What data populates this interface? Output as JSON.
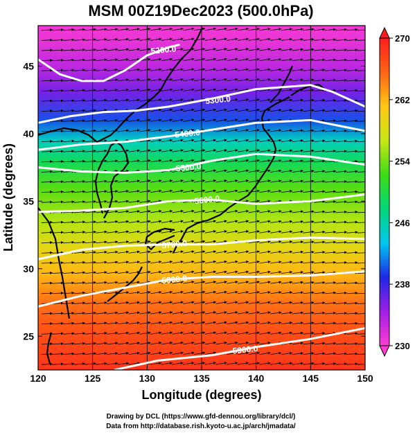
{
  "title": "MSM 00Z19Dec2023 (500.0hPa)",
  "xlabel": "Longitude (degrees)",
  "ylabel": "Latitude  (degrees)",
  "credits": [
    "Drawing by DCL (https://www.gfd-dennou.org/library/dcl/)",
    "Data from http://database.rish.kyoto-u.ac.jp/arch/jmadata/"
  ],
  "chart_data": {
    "type": "heatmap",
    "x_range": [
      120,
      150
    ],
    "y_range": [
      22.5,
      48
    ],
    "x_ticks": [
      120,
      125,
      130,
      135,
      140,
      145,
      150
    ],
    "x_tick_labels": [
      "120",
      "125",
      "130",
      "135",
      "140",
      "145",
      "150"
    ],
    "y_ticks": [
      25,
      30,
      35,
      40,
      45
    ],
    "y_tick_labels": [
      "25",
      "30",
      "35",
      "40",
      "45"
    ],
    "colorbar": {
      "min": 230,
      "max": 270,
      "ticks": [
        230,
        238,
        246,
        254,
        262,
        270
      ],
      "tick_labels": [
        "230",
        "238",
        "246",
        "254",
        "262",
        "270"
      ],
      "colors_low_to_high": [
        "#ff3cd2",
        "#a01ee6",
        "#1e28e6",
        "#00c8f0",
        "#00d878",
        "#3cdc14",
        "#c8e614",
        "#ffc814",
        "#ff6414",
        "#ff1e1e"
      ]
    },
    "contours": [
      {
        "label": "5200.0",
        "points": [
          [
            120,
            45.5
          ],
          [
            122,
            44.4
          ],
          [
            124,
            43.9
          ],
          [
            126,
            43.9
          ],
          [
            128,
            44.7
          ],
          [
            130,
            45.8
          ],
          [
            132,
            46.4
          ],
          [
            133,
            46.6
          ]
        ]
      },
      {
        "label": "5300.0",
        "points": [
          [
            120,
            40.8
          ],
          [
            123,
            41.3
          ],
          [
            126,
            41.6
          ],
          [
            129,
            41.7
          ],
          [
            132,
            42
          ],
          [
            134,
            42.3
          ],
          [
            136,
            42.6
          ],
          [
            140,
            43.3
          ],
          [
            145,
            43.6
          ],
          [
            147,
            43.1
          ],
          [
            150,
            42
          ]
        ]
      },
      {
        "label": "5400.0",
        "points": [
          [
            120,
            38.8
          ],
          [
            124,
            39.2
          ],
          [
            128,
            39.4
          ],
          [
            132,
            39.8
          ],
          [
            136,
            40.3
          ],
          [
            140,
            40.8
          ],
          [
            145,
            41
          ],
          [
            150,
            40.2
          ]
        ]
      },
      {
        "label": "5500.0",
        "points": [
          [
            120,
            37.5
          ],
          [
            124,
            37.2
          ],
          [
            128,
            37.1
          ],
          [
            132,
            37.3
          ],
          [
            136,
            38
          ],
          [
            140,
            38.5
          ],
          [
            145,
            38.3
          ],
          [
            150,
            37.7
          ]
        ]
      },
      {
        "label": "5600.0",
        "points": [
          [
            120,
            34.2
          ],
          [
            124,
            34.3
          ],
          [
            128,
            34.5
          ],
          [
            132,
            35
          ],
          [
            136,
            35.1
          ],
          [
            140,
            34.8
          ],
          [
            145,
            35
          ],
          [
            150,
            35.5
          ]
        ]
      },
      {
        "label": "5700.0",
        "points": [
          [
            120,
            30.7
          ],
          [
            124,
            31.4
          ],
          [
            128,
            31.7
          ],
          [
            132,
            31.8
          ],
          [
            136,
            31.8
          ],
          [
            140,
            32.1
          ],
          [
            145,
            32.3
          ],
          [
            150,
            32.2
          ]
        ]
      },
      {
        "label": "5800.0",
        "points": [
          [
            120,
            27.2
          ],
          [
            124,
            28
          ],
          [
            128,
            28.6
          ],
          [
            132,
            29.2
          ],
          [
            136,
            29.4
          ],
          [
            140,
            29.4
          ],
          [
            145,
            29.5
          ],
          [
            150,
            29.8
          ]
        ]
      },
      {
        "label": "5900.0",
        "points": [
          [
            127,
            22.5
          ],
          [
            131,
            23.2
          ],
          [
            136,
            23.6
          ],
          [
            140,
            24.2
          ],
          [
            145,
            24.8
          ],
          [
            150,
            25.6
          ]
        ]
      }
    ],
    "contour_labels": [
      {
        "label": "5200.0",
        "at": [
          131.5,
          46.2
        ]
      },
      {
        "label": "5300.0",
        "at": [
          136.5,
          42.5
        ]
      },
      {
        "label": "5400.0",
        "at": [
          133.7,
          40
        ]
      },
      {
        "label": "5500.0",
        "at": [
          133.8,
          37.5
        ]
      },
      {
        "label": "5600.0",
        "at": [
          135.5,
          35.1
        ]
      },
      {
        "label": "5700.0",
        "at": [
          132.5,
          31.8
        ]
      },
      {
        "label": "5800.0",
        "at": [
          132.5,
          29.2
        ]
      },
      {
        "label": "5900.0",
        "at": [
          139,
          24
        ]
      }
    ],
    "field_bands": [
      {
        "lat": 22.5,
        "value": 268.5
      },
      {
        "lat": 25,
        "value": 267
      },
      {
        "lat": 27.5,
        "value": 265
      },
      {
        "lat": 29.5,
        "value": 262
      },
      {
        "lat": 31.5,
        "value": 259
      },
      {
        "lat": 33.5,
        "value": 256
      },
      {
        "lat": 36,
        "value": 253
      },
      {
        "lat": 38,
        "value": 249
      },
      {
        "lat": 39.5,
        "value": 245
      },
      {
        "lat": 41,
        "value": 240
      },
      {
        "lat": 43,
        "value": 236
      },
      {
        "lat": 45,
        "value": 233
      },
      {
        "lat": 47,
        "value": 231
      },
      {
        "lat": 48,
        "value": 230.5
      }
    ]
  }
}
